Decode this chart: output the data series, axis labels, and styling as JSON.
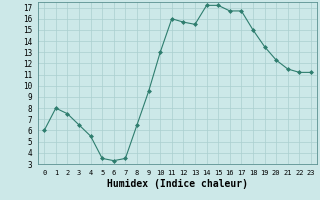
{
  "xlabel": "Humidex (Indice chaleur)",
  "x": [
    0,
    1,
    2,
    3,
    4,
    5,
    6,
    7,
    8,
    9,
    10,
    11,
    12,
    13,
    14,
    15,
    16,
    17,
    18,
    19,
    20,
    21,
    22,
    23
  ],
  "y": [
    6,
    8,
    7.5,
    6.5,
    5.5,
    3.5,
    3.3,
    3.5,
    6.5,
    9.5,
    13,
    16,
    15.7,
    15.5,
    17.2,
    17.2,
    16.7,
    16.7,
    15,
    13.5,
    12.3,
    11.5,
    11.2,
    11.2
  ],
  "line_color": "#2e7d6e",
  "marker": "D",
  "marker_size": 2,
  "background_color": "#cce8e8",
  "grid_color": "#aacfcf",
  "ylim": [
    3,
    17.5
  ],
  "xlim": [
    -0.5,
    23.5
  ],
  "yticks": [
    3,
    4,
    5,
    6,
    7,
    8,
    9,
    10,
    11,
    12,
    13,
    14,
    15,
    16,
    17
  ],
  "xticks": [
    0,
    1,
    2,
    3,
    4,
    5,
    6,
    7,
    8,
    9,
    10,
    11,
    12,
    13,
    14,
    15,
    16,
    17,
    18,
    19,
    20,
    21,
    22,
    23
  ],
  "ytick_fontsize": 5.5,
  "xtick_fontsize": 5.0,
  "xlabel_fontsize": 7.0,
  "linewidth": 0.8
}
